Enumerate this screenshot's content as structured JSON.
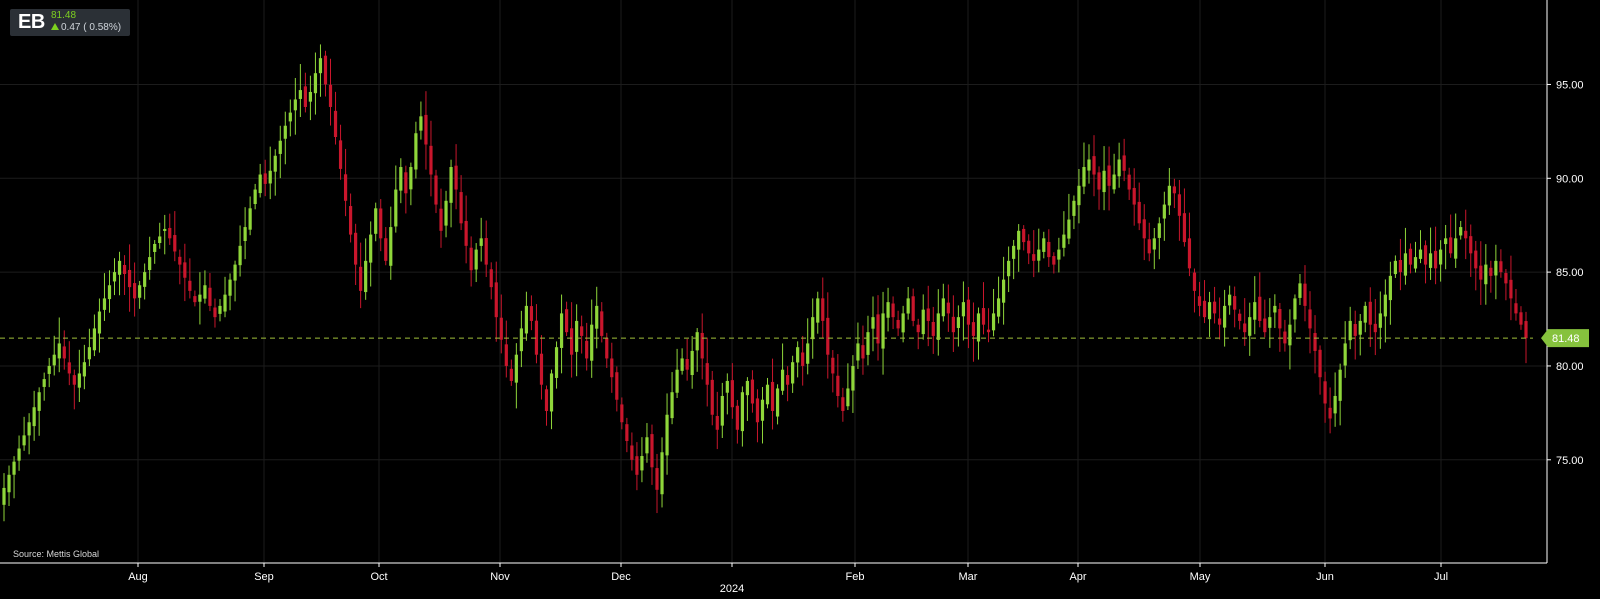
{
  "ticker": {
    "symbol": "EB",
    "price": "81.48",
    "change": "0.47 ( 0.58%)"
  },
  "source": "Source: Mettis Global",
  "chart_data": {
    "type": "candlestick",
    "title": "",
    "xlabel": "",
    "ylabel": "",
    "ylim": [
      69.5,
      99.5
    ],
    "y_ticks": [
      "75.00",
      "80.00",
      "85.00",
      "90.00",
      "95.00"
    ],
    "x_ticks": [
      "Aug",
      "Sep",
      "Oct",
      "Nov",
      "Dec",
      "2024",
      "Feb",
      "Mar",
      "Apr",
      "May",
      "Jun",
      "Jul"
    ],
    "last_price": 81.48,
    "last_price_label": "81.48",
    "colors": {
      "up": "#8fd63a",
      "down": "#c9162c",
      "grid": "#1c1c1c",
      "axis": "#ffffff",
      "price_line": "#9fbf3a"
    },
    "close_series": [
      73.5,
      74.2,
      74.9,
      75.6,
      76.3,
      77.0,
      77.8,
      78.6,
      79.3,
      80.0,
      80.6,
      81.2,
      80.4,
      79.6,
      79.0,
      79.6,
      80.2,
      81.0,
      82.0,
      82.9,
      83.6,
      84.3,
      85.0,
      85.6,
      84.9,
      84.2,
      83.6,
      84.3,
      85.0,
      85.8,
      86.5,
      86.9,
      87.3,
      86.8,
      86.1,
      85.4,
      84.7,
      84.0,
      83.4,
      83.8,
      84.3,
      83.2,
      82.6,
      83.2,
      83.8,
      84.6,
      85.4,
      86.4,
      87.4,
      88.4,
      89.4,
      90.2,
      89.7,
      90.4,
      91.2,
      92.0,
      92.8,
      93.5,
      94.2,
      94.7,
      93.8,
      94.6,
      95.6,
      96.4,
      95.0,
      93.8,
      92.2,
      90.5,
      88.8,
      87.0,
      85.4,
      84.0,
      85.6,
      87.0,
      88.4,
      86.8,
      85.6,
      87.4,
      89.4,
      90.6,
      89.2,
      90.6,
      92.4,
      93.3,
      91.8,
      90.2,
      88.6,
      87.2,
      88.8,
      90.6,
      89.4,
      87.6,
      86.4,
      85.1,
      86.2,
      86.8,
      85.4,
      84.2,
      82.6,
      81.4,
      80.0,
      79.2,
      80.6,
      82.0,
      83.2,
      82.4,
      80.6,
      79.0,
      77.6,
      79.6,
      81.0,
      82.8,
      81.8,
      80.6,
      82.4,
      81.6,
      80.4,
      82.2,
      83.2,
      81.6,
      80.4,
      79.4,
      78.2,
      77.0,
      76.0,
      75.0,
      74.2,
      75.2,
      76.2,
      74.6,
      73.4,
      75.4,
      77.4,
      78.6,
      79.8,
      80.4,
      79.8,
      80.8,
      81.8,
      80.4,
      79.0,
      77.4,
      76.6,
      78.4,
      79.2,
      77.8,
      76.6,
      78.6,
      79.2,
      78.0,
      77.0,
      78.2,
      79.0,
      77.6,
      78.8,
      79.8,
      79.0,
      80.2,
      81.0,
      80.0,
      81.2,
      82.6,
      83.6,
      82.4,
      80.6,
      79.6,
      78.4,
      77.6,
      78.8,
      80.0,
      81.2,
      80.4,
      81.8,
      82.6,
      81.2,
      82.8,
      83.4,
      82.6,
      82.0,
      82.8,
      83.6,
      82.4,
      81.8,
      83.0,
      82.4,
      81.6,
      82.8,
      83.6,
      82.8,
      81.8,
      82.6,
      83.4,
      82.2,
      81.6,
      82.8,
      82.2,
      81.8,
      82.8,
      83.6,
      84.6,
      85.6,
      86.4,
      87.2,
      86.6,
      86.0,
      85.6,
      86.2,
      86.8,
      85.8,
      85.4,
      86.2,
      87.0,
      87.8,
      88.8,
      89.6,
      90.6,
      91.0,
      90.2,
      89.4,
      90.4,
      89.6,
      90.2,
      91.0,
      90.4,
      89.4,
      88.6,
      87.6,
      86.8,
      86.0,
      86.8,
      87.6,
      88.6,
      89.6,
      89.2,
      88.0,
      86.6,
      85.2,
      84.0,
      83.2,
      82.6,
      83.4,
      82.8,
      82.2,
      83.2,
      83.8,
      83.0,
      82.4,
      81.8,
      82.6,
      83.4,
      82.4,
      81.8,
      82.6,
      83.2,
      82.0,
      81.2,
      82.2,
      83.6,
      84.4,
      83.2,
      82.0,
      80.8,
      79.4,
      78.0,
      77.2,
      78.4,
      79.8,
      81.2,
      82.4,
      81.6,
      82.4,
      83.2,
      82.2,
      81.8,
      82.8,
      83.8,
      84.8,
      85.6,
      85.0,
      86.0,
      85.4,
      85.8,
      86.2,
      85.4,
      86.0,
      85.2,
      86.2,
      86.8,
      86.0,
      86.8,
      87.4,
      86.8,
      86.0,
      85.2,
      84.6,
      85.4,
      84.8,
      85.6,
      85.0,
      84.4,
      83.6,
      82.8,
      82.2,
      81.48
    ]
  }
}
